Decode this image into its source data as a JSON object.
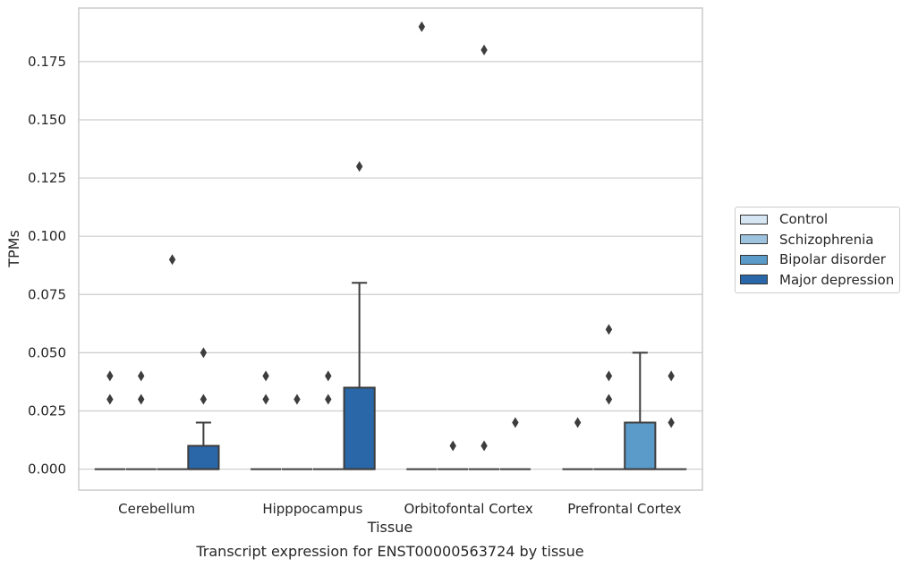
{
  "chart_data": {
    "type": "box",
    "title": "Transcript expression for ENST00000563724 by tissue",
    "xlabel": "Tissue",
    "ylabel": "TPMs",
    "categories": [
      "Cerebellum",
      "Hipppocampus",
      "Orbitofontal Cortex",
      "Prefrontal Cortex"
    ],
    "ylim": [
      -0.009,
      0.198
    ],
    "yticks": [
      "0.000",
      "0.025",
      "0.050",
      "0.075",
      "0.100",
      "0.125",
      "0.150",
      "0.175"
    ],
    "grid": true,
    "legend_position": "right",
    "series": [
      {
        "name": "Control",
        "color": "#d6e5f2",
        "boxes": [
          {
            "q1": 0,
            "median": 0,
            "q3": 0,
            "whislo": 0,
            "whishi": 0,
            "fliers": [
              0.03,
              0.04
            ]
          },
          {
            "q1": 0,
            "median": 0,
            "q3": 0,
            "whislo": 0,
            "whishi": 0,
            "fliers": [
              0.03,
              0.04
            ]
          },
          {
            "q1": 0,
            "median": 0,
            "q3": 0,
            "whislo": 0,
            "whishi": 0,
            "fliers": [
              0.19
            ]
          },
          {
            "q1": 0,
            "median": 0,
            "q3": 0,
            "whislo": 0,
            "whishi": 0,
            "fliers": [
              0.02
            ]
          }
        ]
      },
      {
        "name": "Schizophrenia",
        "color": "#9dc3de",
        "boxes": [
          {
            "q1": 0,
            "median": 0,
            "q3": 0,
            "whislo": 0,
            "whishi": 0,
            "fliers": [
              0.03,
              0.04
            ]
          },
          {
            "q1": 0,
            "median": 0,
            "q3": 0,
            "whislo": 0,
            "whishi": 0,
            "fliers": [
              0.03
            ]
          },
          {
            "q1": 0,
            "median": 0,
            "q3": 0,
            "whislo": 0,
            "whishi": 0,
            "fliers": [
              0.01
            ]
          },
          {
            "q1": 0,
            "median": 0,
            "q3": 0,
            "whislo": 0,
            "whishi": 0,
            "fliers": [
              0.03,
              0.04,
              0.06
            ]
          }
        ]
      },
      {
        "name": "Bipolar disorder",
        "color": "#5a9bc9",
        "boxes": [
          {
            "q1": 0,
            "median": 0,
            "q3": 0,
            "whislo": 0,
            "whishi": 0,
            "fliers": [
              0.09
            ]
          },
          {
            "q1": 0,
            "median": 0,
            "q3": 0,
            "whislo": 0,
            "whishi": 0,
            "fliers": [
              0.03,
              0.04
            ]
          },
          {
            "q1": 0,
            "median": 0,
            "q3": 0,
            "whislo": 0,
            "whishi": 0,
            "fliers": [
              0.01,
              0.18
            ]
          },
          {
            "q1": 0,
            "median": 0,
            "q3": 0.02,
            "whislo": 0,
            "whishi": 0.05,
            "fliers": []
          }
        ]
      },
      {
        "name": "Major depression",
        "color": "#2967a9",
        "boxes": [
          {
            "q1": 0,
            "median": 0,
            "q3": 0.01,
            "whislo": 0,
            "whishi": 0.02,
            "fliers": [
              0.03,
              0.05
            ]
          },
          {
            "q1": 0,
            "median": 0,
            "q3": 0.035,
            "whislo": 0,
            "whishi": 0.08,
            "fliers": [
              0.13
            ]
          },
          {
            "q1": 0,
            "median": 0,
            "q3": 0,
            "whislo": 0,
            "whishi": 0,
            "fliers": [
              0.02
            ]
          },
          {
            "q1": 0,
            "median": 0,
            "q3": 0,
            "whislo": 0,
            "whishi": 0,
            "fliers": [
              0.02,
              0.04
            ]
          }
        ]
      }
    ]
  }
}
